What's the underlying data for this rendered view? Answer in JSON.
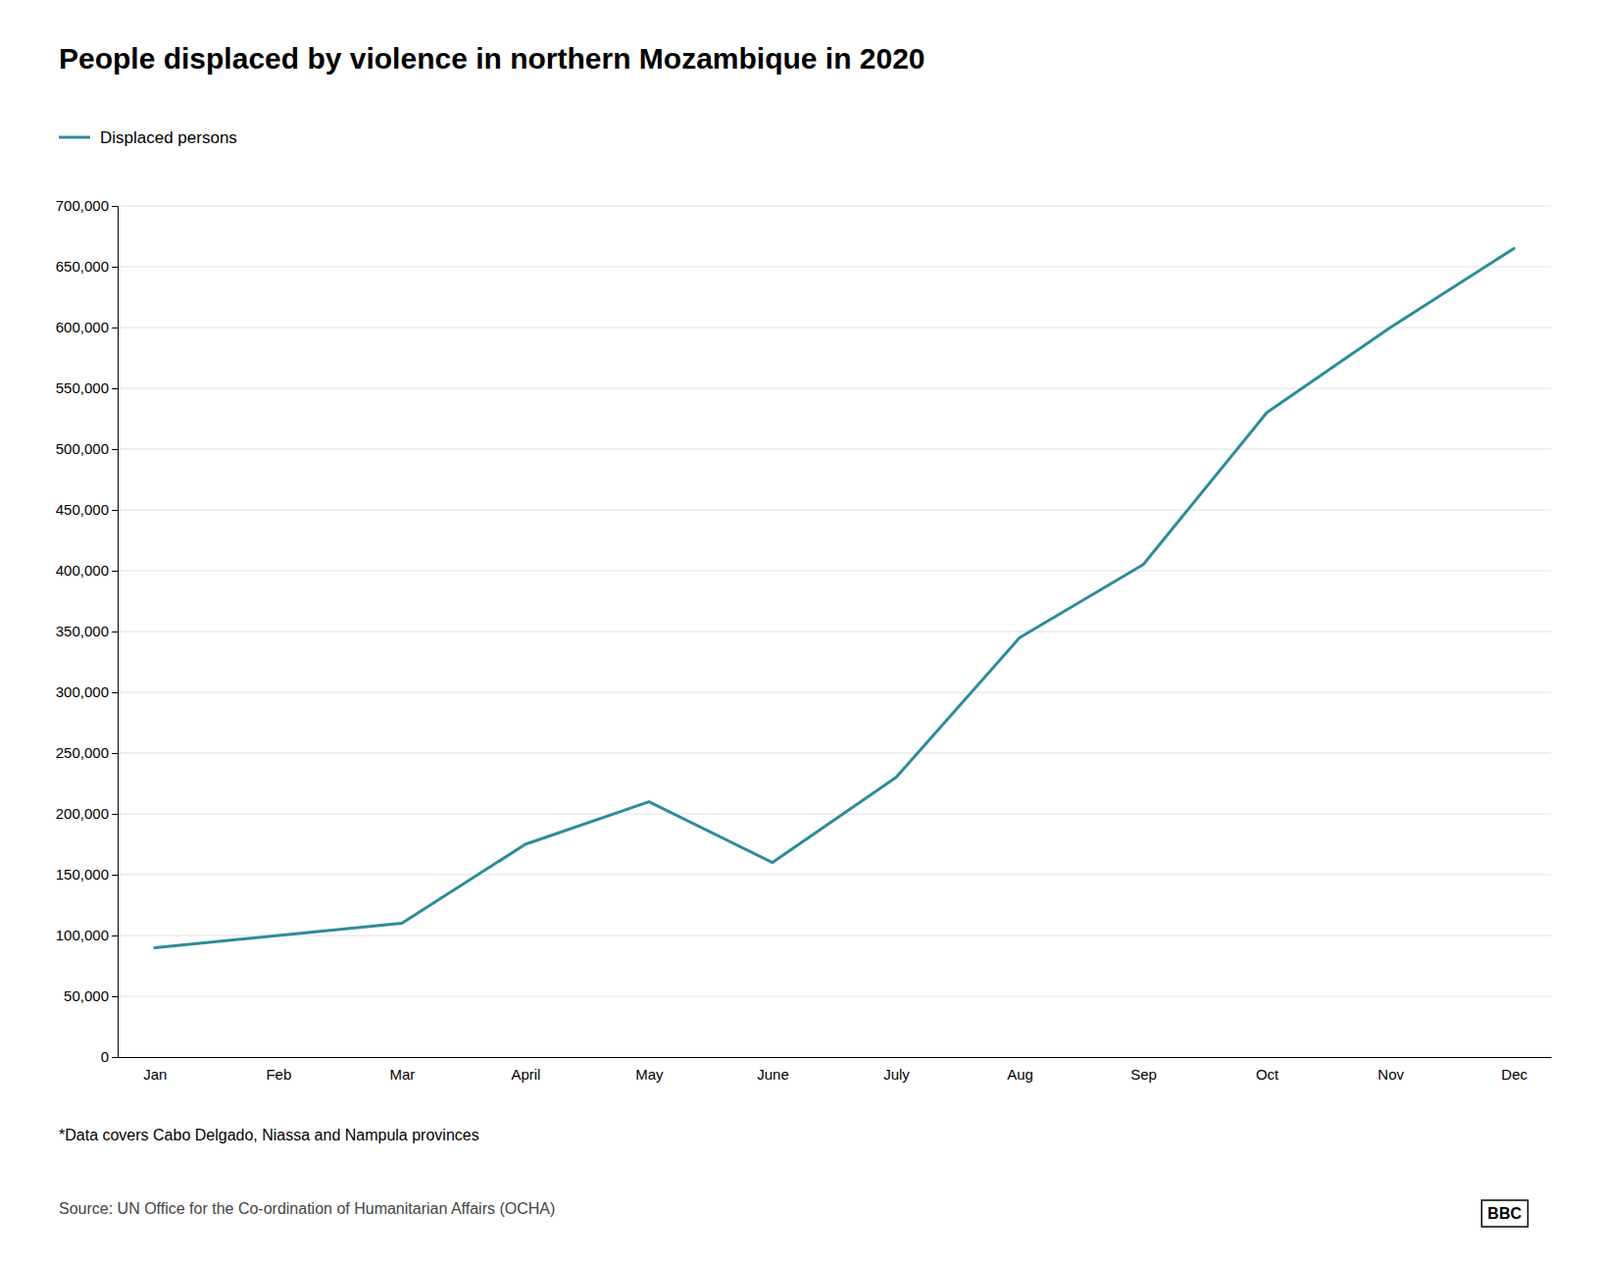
{
  "chart_data": {
    "type": "line",
    "title": "People displaced by violence in northern Mozambique in 2020",
    "categories": [
      "Jan",
      "Feb",
      "Mar",
      "April",
      "May",
      "June",
      "July",
      "Aug",
      "Sep",
      "Oct",
      "Nov",
      "Dec"
    ],
    "series": [
      {
        "name": "Displaced persons",
        "color": "#2e8b9a",
        "values": [
          90000,
          100000,
          110000,
          175000,
          210000,
          160000,
          230000,
          345000,
          405000,
          530000,
          600000,
          665000
        ]
      }
    ],
    "ylim": [
      0,
      700000
    ],
    "yticks": [
      0,
      {
        "value": 50000,
        "label": "50,000"
      },
      {
        "value": 100000,
        "label": "100,000"
      },
      {
        "value": 150000,
        "label": "150,000"
      },
      {
        "value": 200000,
        "label": "200,000"
      },
      {
        "value": 250000,
        "label": "250,000"
      },
      {
        "value": 300000,
        "label": "300,000"
      },
      {
        "value": 350000,
        "label": "350,000"
      },
      {
        "value": 400000,
        "label": "400,000"
      },
      {
        "value": 450000,
        "label": "450,000"
      },
      {
        "value": 500000,
        "label": "500,000"
      },
      {
        "value": 550000,
        "label": "550,000"
      },
      {
        "value": 600000,
        "label": "600,000"
      },
      {
        "value": 650000,
        "label": "650,000"
      },
      {
        "value": 700000,
        "label": "700,000"
      }
    ],
    "grid": true,
    "legend": "upper left",
    "annotations": [
      "*Data covers Cabo Delgado, Niassa and Nampula provinces",
      "Source: UN Office for the Co-ordination of Humanitarian Affairs (OCHA)",
      "BBC"
    ]
  }
}
